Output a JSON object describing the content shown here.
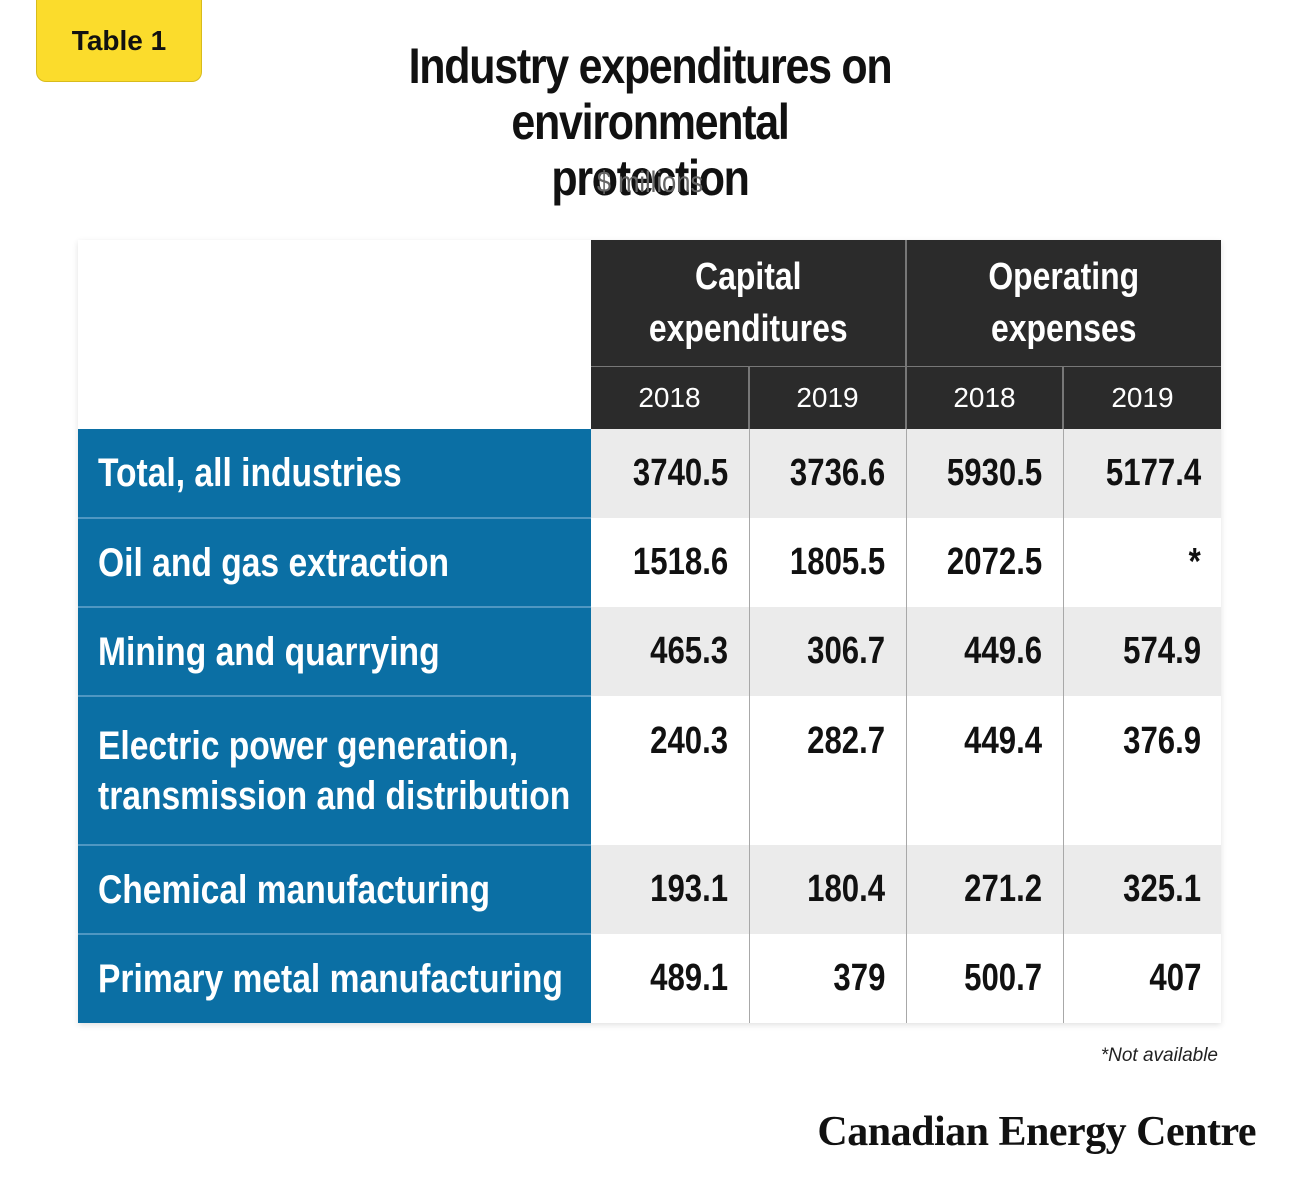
{
  "tag": "Table 1",
  "chart_data": {
    "type": "table",
    "title": "Industry expenditures on environmental protection",
    "subtitle": "$ millions",
    "column_groups": [
      "Capital expenditures",
      "Operating expenses"
    ],
    "years": [
      "2018",
      "2019",
      "2018",
      "2019"
    ],
    "rows": [
      {
        "label": "Total, all industries",
        "values": [
          "3740.5",
          "3736.6",
          "5930.5",
          "5177.4"
        ]
      },
      {
        "label": "Oil and gas extraction",
        "values": [
          "1518.6",
          "1805.5",
          "2072.5",
          "*"
        ]
      },
      {
        "label": "Mining and quarrying",
        "values": [
          "465.3",
          "306.7",
          "449.6",
          "574.9"
        ]
      },
      {
        "label": "Electric power generation, transmission and distribution",
        "label_lines": [
          "Electric power generation,",
          "transmission and distribution"
        ],
        "values": [
          "240.3",
          "282.7",
          "449.4",
          "376.9"
        ]
      },
      {
        "label": "Chemical manufacturing",
        "values": [
          "193.1",
          "180.4",
          "271.2",
          "325.1"
        ]
      },
      {
        "label": "Primary metal manufacturing",
        "values": [
          "489.1",
          "379",
          "500.7",
          "407"
        ]
      }
    ],
    "footnote": "*Not available"
  },
  "brand": "Canadian Energy Centre"
}
